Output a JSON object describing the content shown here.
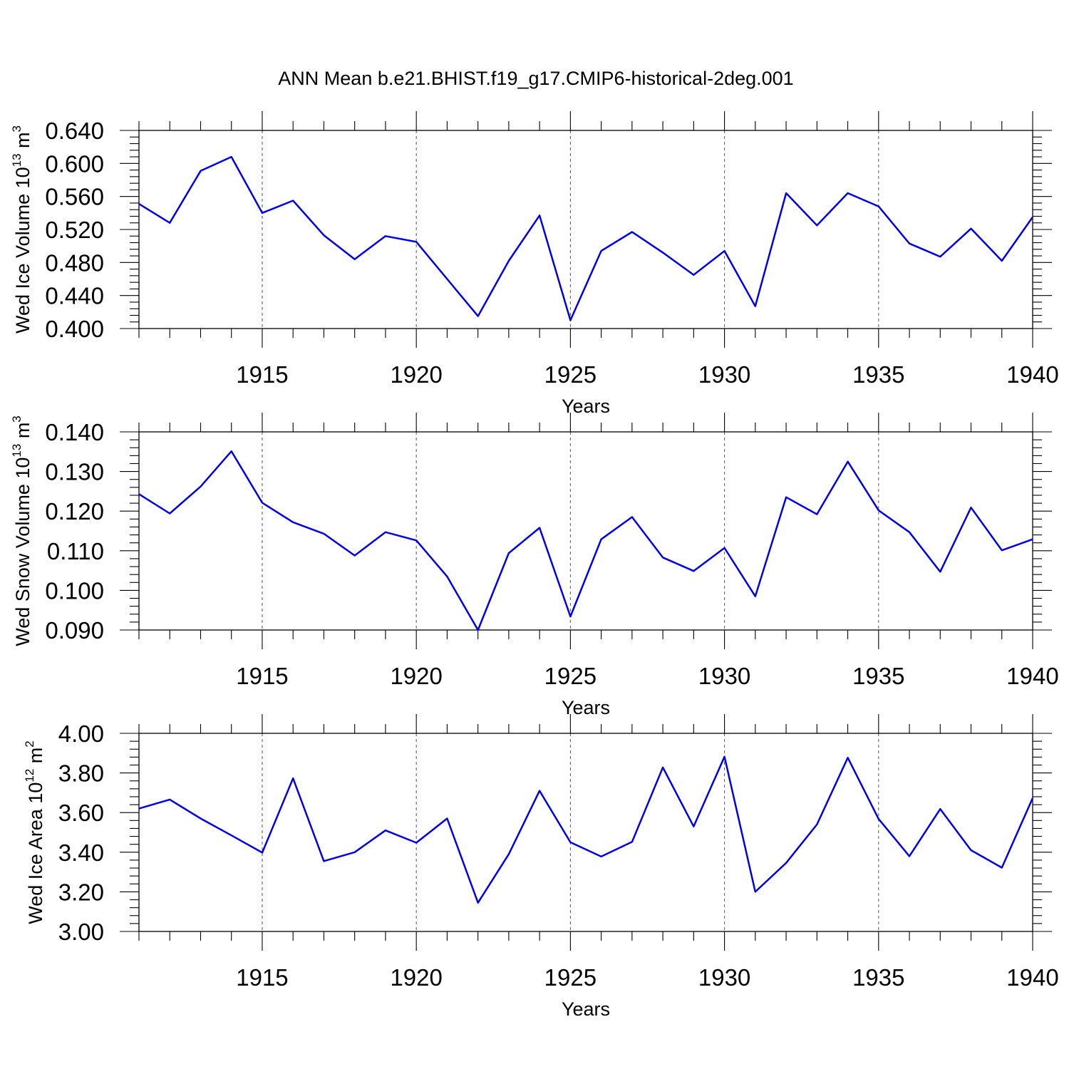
{
  "title": "ANN Mean b.e21.BHIST.f19_g17.CMIP6-historical-2deg.001",
  "chart_data": [
    {
      "type": "line",
      "ylabel": {
        "main": "Wed Ice Volume 10",
        "exp": "13",
        "unit": " m",
        "unit_exp": "3"
      },
      "xlabel": "Years",
      "xlim": [
        1911,
        1940
      ],
      "ylim": [
        0.4,
        0.64
      ],
      "yticks": [
        0.4,
        0.44,
        0.48,
        0.52,
        0.56,
        0.6,
        0.64
      ],
      "ytick_labels": [
        "0.400",
        "0.440",
        "0.480",
        "0.520",
        "0.560",
        "0.600",
        "0.640"
      ],
      "xticks": [
        1915,
        1920,
        1925,
        1930,
        1935,
        1940
      ],
      "xtick_labels": [
        "1915",
        "1920",
        "1925",
        "1930",
        "1935",
        "1940"
      ],
      "grid": "vertical-dashed",
      "color": "#0000ee",
      "x": [
        1911,
        1912,
        1913,
        1914,
        1915,
        1916,
        1917,
        1918,
        1919,
        1920,
        1921,
        1922,
        1923,
        1924,
        1925,
        1926,
        1927,
        1928,
        1929,
        1930,
        1931,
        1932,
        1933,
        1934,
        1935,
        1936,
        1937,
        1938,
        1939,
        1940
      ],
      "values": [
        0.551,
        0.528,
        0.591,
        0.608,
        0.54,
        0.555,
        0.513,
        0.484,
        0.512,
        0.505,
        0.46,
        0.415,
        0.482,
        0.537,
        0.41,
        0.494,
        0.517,
        0.492,
        0.465,
        0.494,
        0.427,
        0.564,
        0.525,
        0.564,
        0.548,
        0.503,
        0.487,
        0.521,
        0.482,
        0.535
      ]
    },
    {
      "type": "line",
      "ylabel": {
        "main": "Wed Snow Volume 10",
        "exp": "13",
        "unit": " m",
        "unit_exp": "3"
      },
      "xlabel": "Years",
      "xlim": [
        1911,
        1940
      ],
      "ylim": [
        0.09,
        0.14
      ],
      "yticks": [
        0.09,
        0.1,
        0.11,
        0.12,
        0.13,
        0.14
      ],
      "ytick_labels": [
        "0.090",
        "0.100",
        "0.110",
        "0.120",
        "0.130",
        "0.140"
      ],
      "xticks": [
        1915,
        1920,
        1925,
        1930,
        1935,
        1940
      ],
      "xtick_labels": [
        "1915",
        "1920",
        "1925",
        "1930",
        "1935",
        "1940"
      ],
      "grid": "vertical-dashed",
      "color": "#0000ee",
      "x": [
        1911,
        1912,
        1913,
        1914,
        1915,
        1916,
        1917,
        1918,
        1919,
        1920,
        1921,
        1922,
        1923,
        1924,
        1925,
        1926,
        1927,
        1928,
        1929,
        1930,
        1931,
        1932,
        1933,
        1934,
        1935,
        1936,
        1937,
        1938,
        1939,
        1940
      ],
      "values": [
        0.1243,
        0.1194,
        0.1262,
        0.1351,
        0.1221,
        0.1172,
        0.1143,
        0.1088,
        0.1147,
        0.1126,
        0.1035,
        0.09,
        0.1094,
        0.1158,
        0.0934,
        0.1129,
        0.1185,
        0.1083,
        0.1049,
        0.1107,
        0.0985,
        0.1235,
        0.1192,
        0.1325,
        0.1202,
        0.1147,
        0.1047,
        0.1209,
        0.1101,
        0.1129
      ]
    },
    {
      "type": "line",
      "ylabel": {
        "main": "Wed Ice Area 10",
        "exp": "12",
        "unit": " m",
        "unit_exp": "2"
      },
      "xlabel": "Years",
      "xlim": [
        1911,
        1940
      ],
      "ylim": [
        3.0,
        4.0
      ],
      "yticks": [
        3.0,
        3.2,
        3.4,
        3.6,
        3.8,
        4.0
      ],
      "ytick_labels": [
        "3.00",
        "3.20",
        "3.40",
        "3.60",
        "3.80",
        "4.00"
      ],
      "xticks": [
        1915,
        1920,
        1925,
        1930,
        1935,
        1940
      ],
      "xtick_labels": [
        "1915",
        "1920",
        "1925",
        "1930",
        "1935",
        "1940"
      ],
      "grid": "vertical-dashed",
      "color": "#0000ee",
      "x": [
        1911,
        1912,
        1913,
        1914,
        1915,
        1916,
        1917,
        1918,
        1919,
        1920,
        1921,
        1922,
        1923,
        1924,
        1925,
        1926,
        1927,
        1928,
        1929,
        1930,
        1931,
        1932,
        1933,
        1934,
        1935,
        1936,
        1937,
        1938,
        1939,
        1940
      ],
      "values": [
        3.62,
        3.666,
        3.57,
        3.485,
        3.398,
        3.773,
        3.355,
        3.4,
        3.51,
        3.448,
        3.57,
        3.145,
        3.39,
        3.71,
        3.45,
        3.378,
        3.452,
        3.828,
        3.53,
        3.882,
        3.2,
        3.346,
        3.54,
        3.877,
        3.568,
        3.38,
        3.618,
        3.41,
        3.322,
        3.673
      ]
    }
  ]
}
